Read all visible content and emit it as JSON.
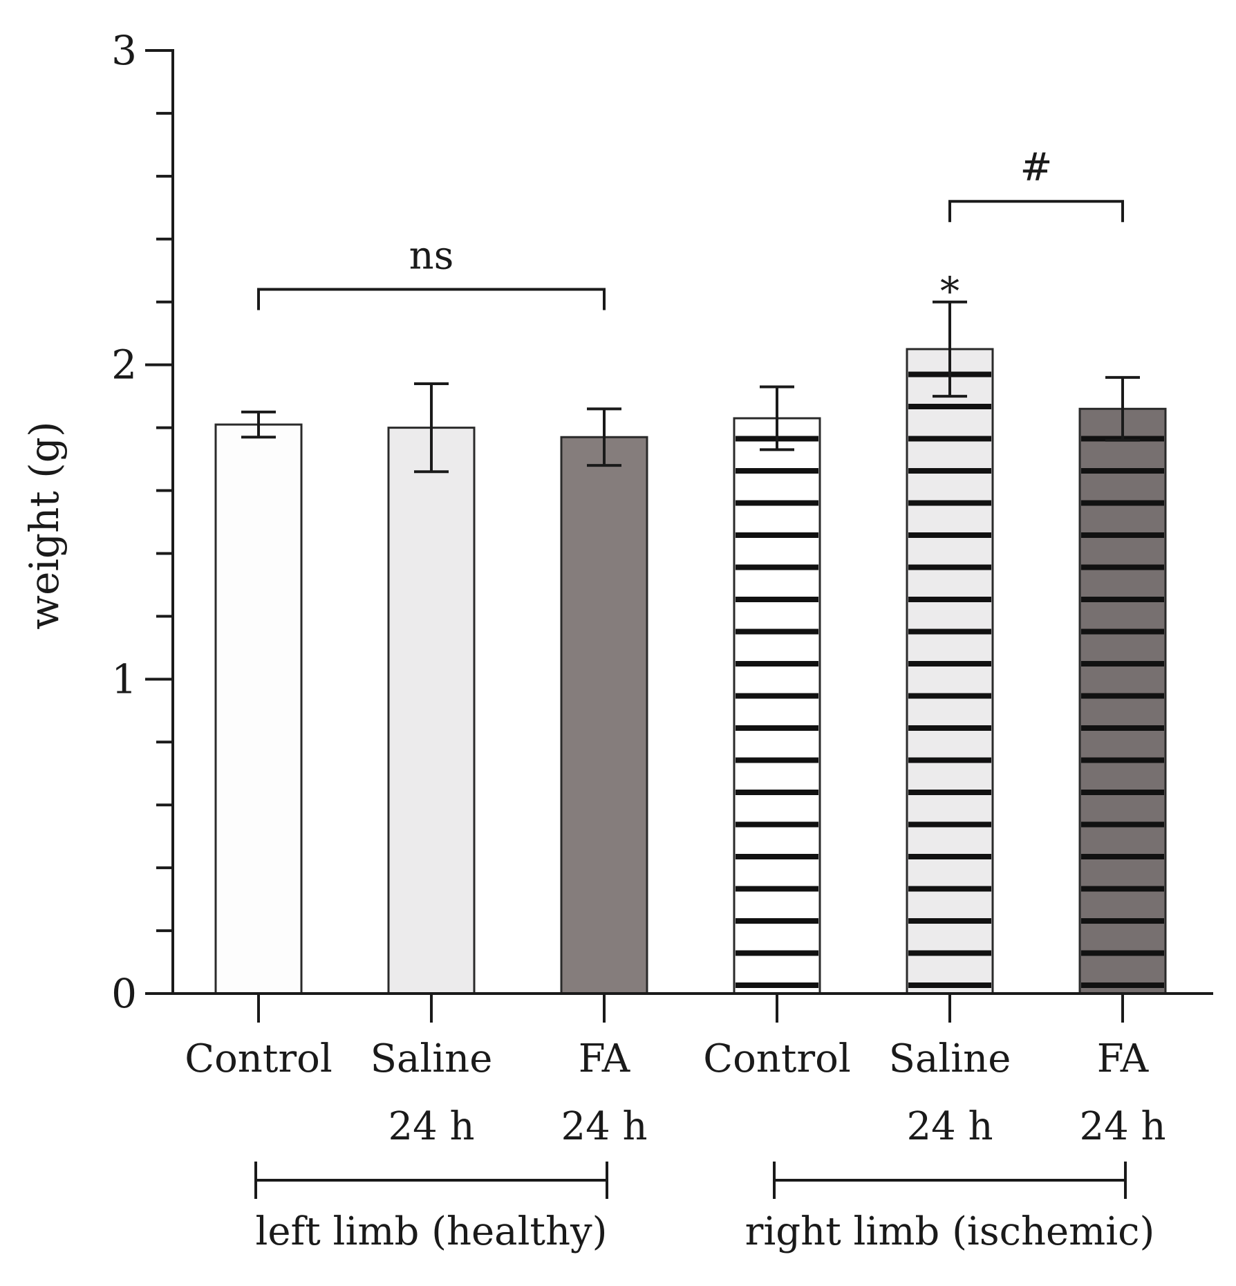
{
  "chart_data": {
    "type": "bar",
    "title": "",
    "xlabel": "",
    "ylabel": "weight (g)",
    "ylim": [
      0,
      3
    ],
    "yticks": [
      0,
      1,
      2,
      3
    ],
    "ytick_labels": [
      "0",
      "1",
      "2",
      "3"
    ],
    "minor_tick_step": 0.2,
    "grid": false,
    "categories": [
      {
        "line1": "Control",
        "line2": ""
      },
      {
        "line1": "Saline",
        "line2": "24 h"
      },
      {
        "line1": "FA",
        "line2": "24 h"
      },
      {
        "line1": "Control",
        "line2": ""
      },
      {
        "line1": "Saline",
        "line2": "24 h"
      },
      {
        "line1": "FA",
        "line2": "24 h"
      }
    ],
    "values": [
      1.81,
      1.8,
      1.77,
      1.83,
      2.05,
      1.86
    ],
    "errors": [
      0.04,
      0.14,
      0.09,
      0.1,
      0.15,
      0.1
    ],
    "fills": [
      "#fdfdfd",
      "#ecebec",
      "#857d7c",
      "#ffffff",
      "#ecebec",
      "#777070"
    ],
    "striped": [
      false,
      false,
      false,
      true,
      true,
      true
    ],
    "stripe_color": "#111111",
    "groups": [
      {
        "label": "left limb (healthy)",
        "from": 0,
        "to": 2
      },
      {
        "label": "right limb (ischemic)",
        "from": 3,
        "to": 5
      }
    ],
    "annotations": [
      {
        "type": "bracket",
        "from": 0,
        "to": 2,
        "y": 2.24,
        "label": "ns"
      },
      {
        "type": "bracket",
        "from": 4,
        "to": 5,
        "y": 2.52,
        "label": "#"
      },
      {
        "type": "marker",
        "bar": 4,
        "label": "*"
      }
    ]
  }
}
